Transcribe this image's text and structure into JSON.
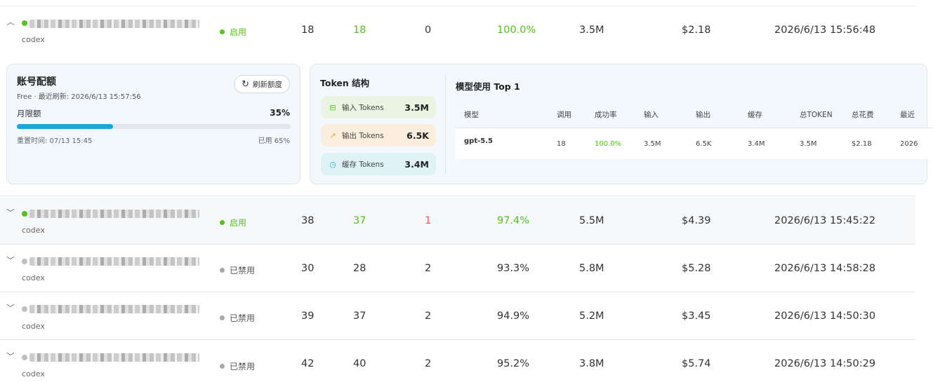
{
  "rows": [
    {
      "account_type": "codex",
      "status": "启用",
      "status_on": true,
      "calls": "18",
      "success": "18",
      "failed": "0",
      "rate": "100.0%",
      "tokens": "3.5M",
      "cost": "$2.18",
      "last_used": "2026/6/13 15:56:48",
      "expanded": true
    },
    {
      "account_type": "codex",
      "status": "启用",
      "status_on": true,
      "calls": "38",
      "success": "37",
      "failed": "1",
      "rate": "97.4%",
      "tokens": "5.5M",
      "cost": "$4.39",
      "last_used": "2026/6/13 15:45:22"
    },
    {
      "account_type": "codex",
      "status": "已禁用",
      "status_on": false,
      "calls": "30",
      "success": "28",
      "failed": "2",
      "rate": "93.3%",
      "tokens": "5.8M",
      "cost": "$5.28",
      "last_used": "2026/6/13 14:58:28"
    },
    {
      "account_type": "codex",
      "status": "已禁用",
      "status_on": false,
      "calls": "39",
      "success": "37",
      "failed": "2",
      "rate": "94.9%",
      "tokens": "5.2M",
      "cost": "$3.45",
      "last_used": "2026/6/13 14:50:30"
    },
    {
      "account_type": "codex",
      "status": "已禁用",
      "status_on": false,
      "calls": "42",
      "success": "40",
      "failed": "2",
      "rate": "95.2%",
      "tokens": "3.8M",
      "cost": "$5.74",
      "last_used": "2026/6/13 14:50:29"
    }
  ],
  "quota": {
    "title": "账号配额",
    "subtitle": "Free · 最近刷新: 2026/6/13 15:57:56",
    "refresh_label": "刷新额度",
    "limit_label": "月限额",
    "percent": "35%",
    "percent_value": 0.35,
    "reset": "重置时间: 07/13 15:45",
    "used": "已用 65%"
  },
  "token_structure": {
    "title": "Token 结构",
    "items": [
      {
        "label": "输入 Tokens",
        "value": "3.5M",
        "icon": "inbox-icon"
      },
      {
        "label": "输出 Tokens",
        "value": "6.5K",
        "icon": "trend-icon"
      },
      {
        "label": "缓存 Tokens",
        "value": "3.4M",
        "icon": "timer-icon"
      }
    ]
  },
  "model_usage": {
    "title": "模型使用 Top 1",
    "headers": [
      "模型",
      "调用",
      "成功率",
      "输入",
      "输出",
      "缓存",
      "总TOKEN",
      "总花费",
      "最近"
    ],
    "rows": [
      {
        "model": "gpt-5.5",
        "calls": "18",
        "rate": "100.0%",
        "input": "3.5M",
        "output": "6.5K",
        "cache": "3.4M",
        "total": "3.5M",
        "cost": "$2.18",
        "last": "2026"
      }
    ]
  },
  "colors": {
    "success": "#52c41a",
    "danger": "#ff4d4f",
    "progress": "#1ba6e0"
  }
}
